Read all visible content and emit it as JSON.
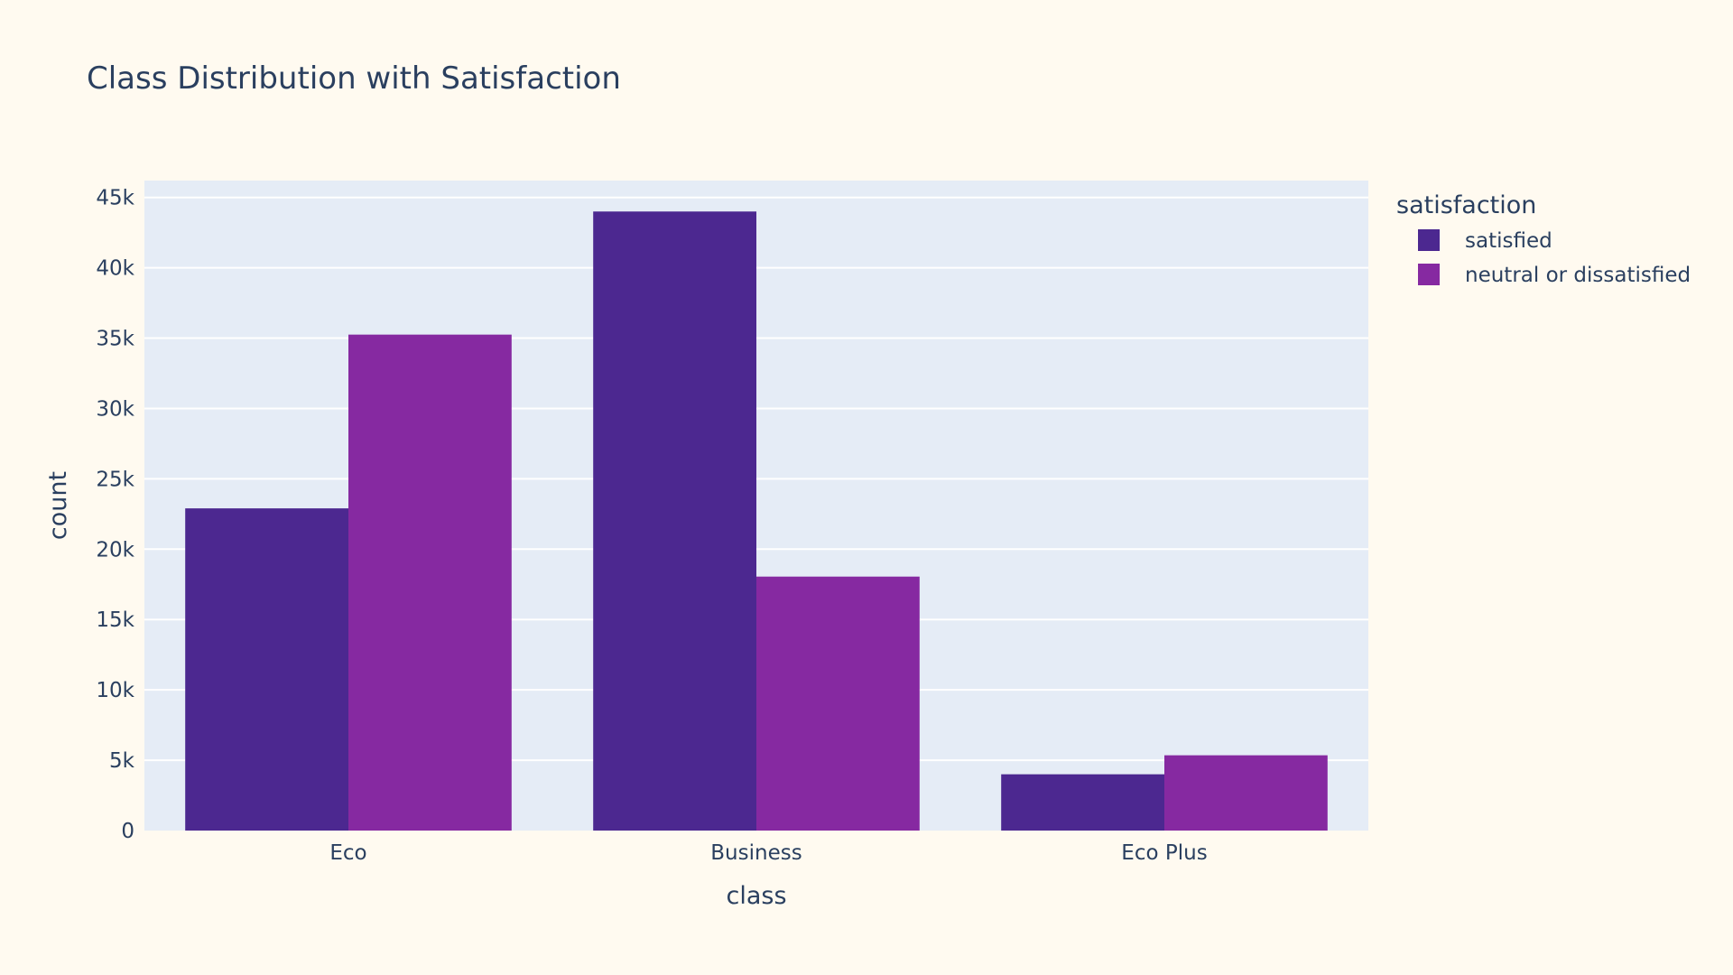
{
  "chart_data": {
    "type": "bar",
    "barmode": "group",
    "title": "Class Distribution with Satisfaction",
    "xlabel": "class",
    "ylabel": "count",
    "categories": [
      "Eco",
      "Business",
      "Eco Plus"
    ],
    "series": [
      {
        "name": "satisfied",
        "color": "#4c2890",
        "values": [
          22900,
          44000,
          4000
        ]
      },
      {
        "name": "neutral or dissatisfied",
        "color": "#8629a1",
        "values": [
          35250,
          18050,
          5350
        ]
      }
    ],
    "ylim": [
      0,
      46200
    ],
    "yticks": [
      0,
      5000,
      10000,
      15000,
      20000,
      25000,
      30000,
      35000,
      40000,
      45000
    ],
    "ytick_labels": [
      "0",
      "5k",
      "10k",
      "15k",
      "20k",
      "25k",
      "30k",
      "35k",
      "40k",
      "45k"
    ],
    "grid": true,
    "legend": {
      "title": "satisfaction",
      "placement": "top-right"
    },
    "colors": {
      "page_background": "#fffaf0",
      "plot_background": "#e5ecf6",
      "grid": "#ffffff",
      "text": "#2a3f5f"
    }
  }
}
